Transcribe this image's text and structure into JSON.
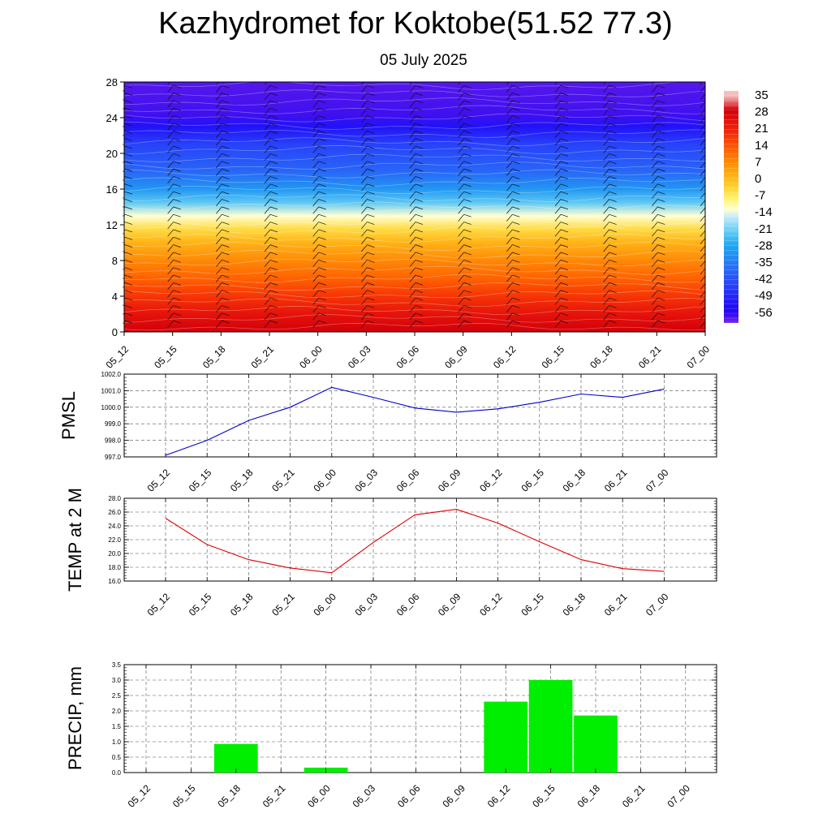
{
  "title": "Kazhydromet for Koktobe(51.52 77.3)",
  "subtitle": "05 July 2025",
  "time_labels": [
    "05_12",
    "05_15",
    "05_18",
    "05_21",
    "06_00",
    "06_03",
    "06_06",
    "06_09",
    "06_12",
    "06_15",
    "06_18",
    "06_21",
    "07_00"
  ],
  "chart_data": [
    {
      "type": "heatmap",
      "name": "temperature-wind-cross-section",
      "x": [
        "05_12",
        "05_15",
        "05_18",
        "05_21",
        "06_00",
        "06_03",
        "06_06",
        "06_09",
        "06_12",
        "06_15",
        "06_18",
        "06_21",
        "07_00"
      ],
      "yticks": [
        0,
        4,
        8,
        12,
        16,
        20,
        24,
        28
      ],
      "ylim": [
        0,
        28
      ],
      "colorbar_labels": [
        "35",
        "28",
        "21",
        "14",
        "7",
        "0",
        "-7",
        "-14",
        "-21",
        "-28",
        "-35",
        "-42",
        "-49",
        "-56"
      ],
      "colorbar_range": [
        -60,
        38
      ],
      "temperature_profile": [
        {
          "level": 0,
          "value": 30
        },
        {
          "level": 2,
          "value": 25
        },
        {
          "level": 4,
          "value": 19
        },
        {
          "level": 6,
          "value": 13
        },
        {
          "level": 8,
          "value": 8
        },
        {
          "level": 10,
          "value": 2
        },
        {
          "level": 11.5,
          "value": -4
        },
        {
          "level": 13,
          "value": -12
        },
        {
          "level": 14.5,
          "value": -22
        },
        {
          "level": 16,
          "value": -30
        },
        {
          "level": 18,
          "value": -38
        },
        {
          "level": 21,
          "value": -44
        },
        {
          "level": 23,
          "value": -52
        },
        {
          "level": 24.5,
          "value": -57
        },
        {
          "level": 28,
          "value": -58
        }
      ],
      "wind_barbs": true,
      "grid": false
    },
    {
      "type": "line",
      "name": "pmsl",
      "ylabel": "PMSL",
      "x": [
        "05_12",
        "05_15",
        "05_18",
        "05_21",
        "06_00",
        "06_03",
        "06_06",
        "06_09",
        "06_12",
        "06_15",
        "06_18",
        "06_21",
        "07_00"
      ],
      "values": [
        997.1,
        998.0,
        999.2,
        1000.0,
        1001.2,
        1000.6,
        999.95,
        999.7,
        999.9,
        1000.3,
        1000.8,
        1000.6,
        1001.1
      ],
      "color": "#0000cc",
      "ylim": [
        997.0,
        1002.0
      ],
      "yticks": [
        "997.0",
        "998.0",
        "999.0",
        "1000.0",
        "1001.0",
        "1002.0"
      ],
      "grid": true
    },
    {
      "type": "line",
      "name": "temp-2m",
      "ylabel": "TEMP at 2 M",
      "x": [
        "05_12",
        "05_15",
        "05_18",
        "05_21",
        "06_00",
        "06_03",
        "06_06",
        "06_09",
        "06_12",
        "06_15",
        "06_18",
        "06_21",
        "07_00"
      ],
      "values": [
        25.1,
        21.3,
        19.1,
        17.9,
        17.2,
        21.6,
        25.6,
        26.4,
        24.4,
        21.7,
        19.1,
        17.8,
        17.4
      ],
      "color": "#dd0000",
      "ylim": [
        16.0,
        28.0
      ],
      "yticks": [
        "16.0",
        "18.0",
        "20.0",
        "22.0",
        "24.0",
        "26.0",
        "28.0"
      ],
      "grid": true
    },
    {
      "type": "bar",
      "name": "precip",
      "ylabel": "PRECIP, mm",
      "categories": [
        "05_12",
        "05_15",
        "05_18",
        "05_21",
        "06_00",
        "06_03",
        "06_06",
        "06_09",
        "06_12",
        "06_15",
        "06_18",
        "06_21",
        "07_00"
      ],
      "values": [
        0,
        0,
        0.93,
        0,
        0.16,
        0,
        0,
        0,
        2.3,
        3.0,
        1.85,
        0,
        0
      ],
      "color": "#00ee00",
      "ylim": [
        0.0,
        3.5
      ],
      "yticks": [
        "0.0",
        "0.5",
        "1.0",
        "1.5",
        "2.0",
        "2.5",
        "3.0",
        "3.5"
      ],
      "grid": true
    }
  ]
}
